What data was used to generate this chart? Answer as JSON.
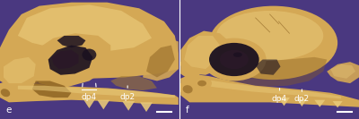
{
  "bg_color": "#4a3880",
  "skull_main": "#d4a855",
  "skull_light": "#e8c878",
  "skull_dark": "#a07830",
  "skull_shadow": "#8a6020",
  "skull_hole": "#1a1020",
  "skull_deep": "#2a1828",
  "text_color": "#ffffff",
  "font_size": 6.5,
  "label_font_size": 7.5,
  "divider_color": "#ffffff",
  "fig_width": 4.0,
  "fig_height": 1.33,
  "dpi": 100,
  "panel_e_label": "e",
  "panel_f_label": "f",
  "dp4_label": "dp4",
  "dp2_label": "dp2"
}
